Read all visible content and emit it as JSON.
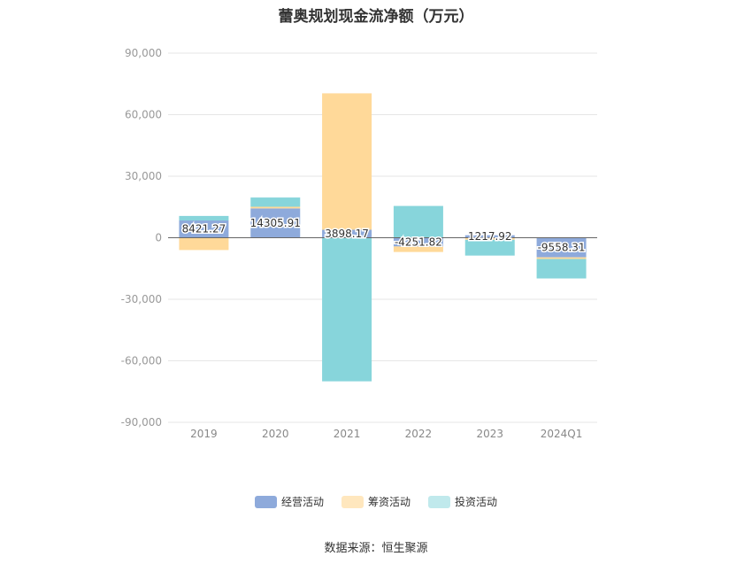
{
  "chart_data": {
    "type": "bar",
    "stacked": true,
    "title": "蕾奥规划现金流净额（万元）",
    "categories": [
      "2019",
      "2020",
      "2021",
      "2022",
      "2023",
      "2024Q1"
    ],
    "series": [
      {
        "name": "经营活动",
        "color": "#8eaadb",
        "values": [
          8421.27,
          14305.91,
          3898.17,
          -4251.82,
          1217.92,
          -9558.31
        ]
      },
      {
        "name": "筹资活动",
        "color": "#ffd999",
        "values": [
          -6000,
          800,
          66500,
          -2700,
          -1000,
          -800
        ]
      },
      {
        "name": "投资活动",
        "color": "#87d5db",
        "values": [
          2200,
          4500,
          -70000,
          15500,
          -7700,
          -9500
        ]
      }
    ],
    "data_labels": [
      "8421.27",
      "14305.91",
      "3898.17",
      "-4251.82",
      "1217.92",
      "-9558.31"
    ],
    "yticks": [
      "90,000",
      "60,000",
      "30,000",
      "0",
      "-30,000",
      "-60,000",
      "-90,000"
    ],
    "ylim": [
      -90000,
      90000
    ],
    "grid": true,
    "legend_position": "bottom"
  },
  "source": "数据来源：恒生聚源"
}
